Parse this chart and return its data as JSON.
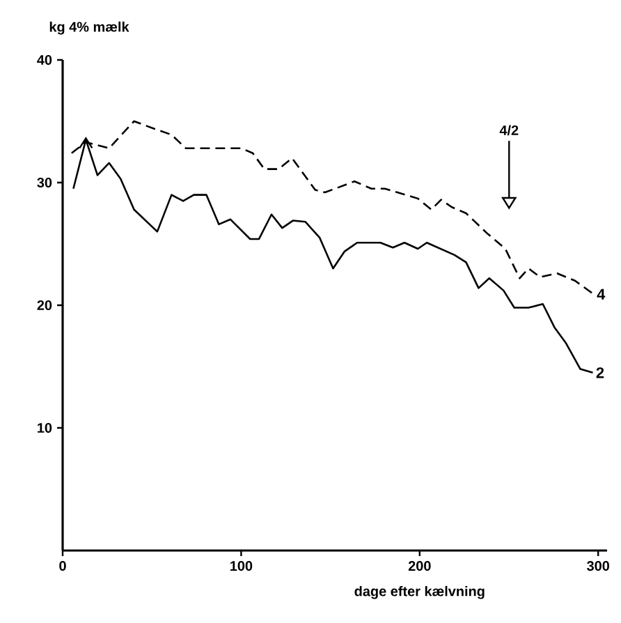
{
  "chart_data": {
    "type": "line",
    "xlabel": "dage efter kælvning",
    "ylabel": "kg 4% mælk",
    "xlim": [
      0,
      305
    ],
    "ylim": [
      0,
      40
    ],
    "xticks": [
      0,
      100,
      200,
      300
    ],
    "yticks": [
      10,
      20,
      30,
      40
    ],
    "grid": false,
    "series": [
      {
        "name": "4",
        "color": "#000000",
        "line_style": "dashed",
        "x": [
          5,
          13,
          26,
          40,
          53,
          61,
          69,
          79.5,
          100,
          106.5,
          113,
          121,
          128.5,
          141.5,
          147,
          163.5,
          173,
          180.5,
          199,
          206.5,
          212,
          218,
          226,
          237.5,
          248,
          256,
          261,
          267.5,
          277,
          287,
          297.5
        ],
        "values": [
          32.4,
          33.3,
          32.8,
          35.0,
          34.3,
          33.9,
          32.8,
          32.8,
          32.8,
          32.4,
          31.1,
          31.1,
          32.0,
          29.4,
          29.2,
          30.1,
          29.5,
          29.5,
          28.7,
          27.8,
          28.6,
          28.0,
          27.5,
          25.9,
          24.6,
          22.2,
          23.0,
          22.3,
          22.6,
          22.0,
          20.9
        ]
      },
      {
        "name": "2",
        "color": "#000000",
        "line_style": "solid",
        "x": [
          6,
          13,
          19.5,
          26,
          32.5,
          40,
          53,
          61,
          67.5,
          73.5,
          80.5,
          87.5,
          94,
          105,
          110,
          117,
          123,
          129,
          136,
          144,
          151.5,
          158,
          165,
          178,
          185,
          191.5,
          199,
          204,
          219.5,
          226,
          233,
          239,
          247,
          253,
          261,
          269,
          275.5,
          282,
          290,
          297
        ],
        "values": [
          29.5,
          33.5,
          30.6,
          31.6,
          30.3,
          27.8,
          26.0,
          29.0,
          28.5,
          29.0,
          29.0,
          26.6,
          27.0,
          25.4,
          25.4,
          27.4,
          26.3,
          26.9,
          26.8,
          25.5,
          23.0,
          24.4,
          25.1,
          25.1,
          24.7,
          25.1,
          24.6,
          25.1,
          24.1,
          23.5,
          21.4,
          22.2,
          21.2,
          19.8,
          19.8,
          20.1,
          18.2,
          16.9,
          14.8,
          14.5
        ]
      }
    ],
    "annotations": [
      "4/2"
    ]
  }
}
